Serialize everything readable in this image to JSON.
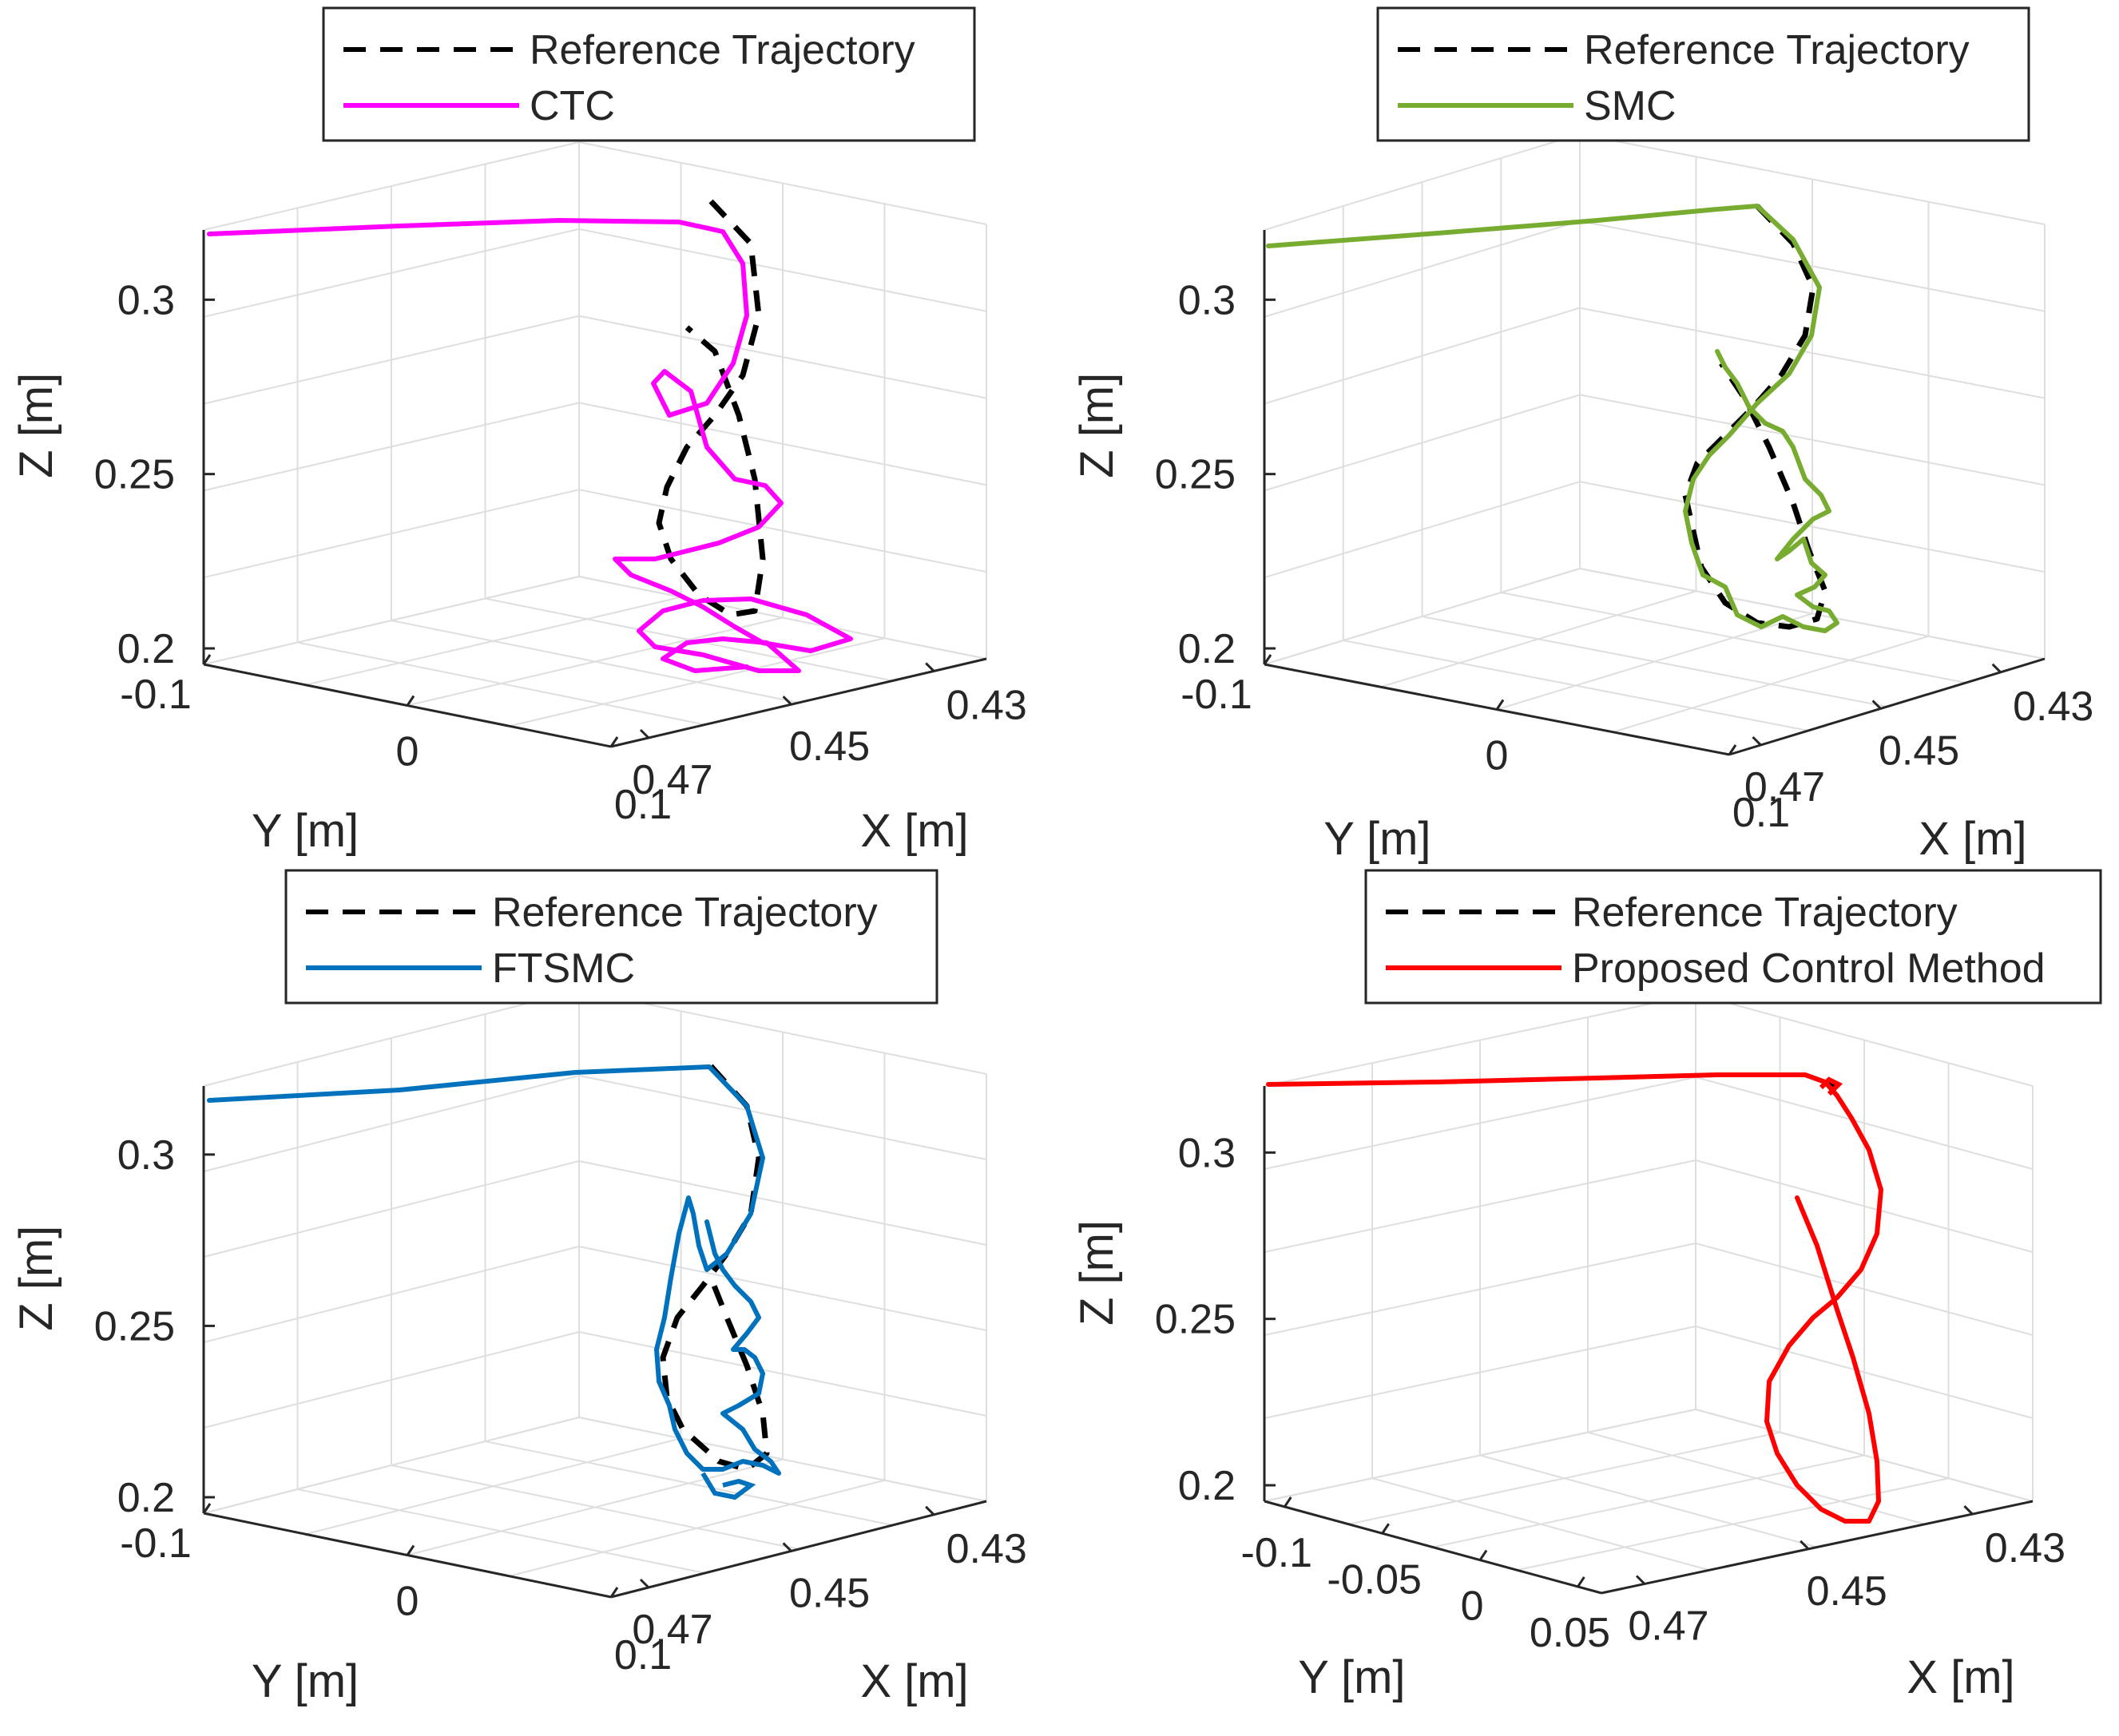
{
  "figure": "3D trajectory tracking comparison (2x2 subplots)",
  "axis_labels": {
    "x": "X [m]",
    "y": "Y [m]",
    "z": "Z [m]"
  },
  "colors": {
    "reference": "#000000",
    "ctc": "#ff00ff",
    "smc": "#77ac30",
    "ftsmc": "#0072bd",
    "proposed": "#ff0000",
    "grid": "#dedede",
    "axis": "#262626"
  },
  "chart_data": [
    {
      "type": "line",
      "panel": "top-left",
      "legend": [
        "Reference Trajectory",
        "CTC"
      ],
      "xlabel": "X [m]",
      "ylabel": "Y [m]",
      "zlabel": "Z [m]",
      "x_ticks": [
        "0.47",
        "0.45",
        "0.43"
      ],
      "y_ticks": [
        "-0.1",
        "0",
        "0.1"
      ],
      "z_ticks": [
        "0.2",
        "0.25",
        "0.3"
      ],
      "zlim": [
        0.2,
        0.32
      ],
      "series": [
        {
          "name": "Reference Trajectory",
          "style": "dashed",
          "color": "#000000"
        },
        {
          "name": "CTC",
          "style": "solid",
          "color": "#ff00ff"
        }
      ]
    },
    {
      "type": "line",
      "panel": "top-right",
      "legend": [
        "Reference Trajectory",
        "SMC"
      ],
      "xlabel": "X [m]",
      "ylabel": "Y [m]",
      "zlabel": "Z [m]",
      "x_ticks": [
        "0.47",
        "0.45",
        "0.43"
      ],
      "y_ticks": [
        "-0.1",
        "0",
        "0.1"
      ],
      "z_ticks": [
        "0.2",
        "0.25",
        "0.3"
      ],
      "zlim": [
        0.2,
        0.32
      ],
      "series": [
        {
          "name": "Reference Trajectory",
          "style": "dashed",
          "color": "#000000"
        },
        {
          "name": "SMC",
          "style": "solid",
          "color": "#77ac30"
        }
      ]
    },
    {
      "type": "line",
      "panel": "bottom-left",
      "legend": [
        "Reference Trajectory",
        "FTSMC"
      ],
      "xlabel": "X [m]",
      "ylabel": "Y [m]",
      "zlabel": "Z [m]",
      "x_ticks": [
        "0.47",
        "0.45",
        "0.43"
      ],
      "y_ticks": [
        "-0.1",
        "0",
        "0.1"
      ],
      "z_ticks": [
        "0.2",
        "0.25",
        "0.3"
      ],
      "zlim": [
        0.2,
        0.32
      ],
      "series": [
        {
          "name": "Reference Trajectory",
          "style": "dashed",
          "color": "#000000"
        },
        {
          "name": "FTSMC",
          "style": "solid",
          "color": "#0072bd"
        }
      ]
    },
    {
      "type": "line",
      "panel": "bottom-right",
      "legend": [
        "Reference Trajectory",
        "Proposed Control Method"
      ],
      "xlabel": "X [m]",
      "ylabel": "Y [m]",
      "zlabel": "Z [m]",
      "x_ticks": [
        "0.47",
        "0.45",
        "0.43"
      ],
      "y_ticks": [
        "-0.1",
        "-0.05",
        "0",
        "0.05"
      ],
      "z_ticks": [
        "0.2",
        "0.25",
        "0.3"
      ],
      "zlim": [
        0.2,
        0.32
      ],
      "series": [
        {
          "name": "Reference Trajectory",
          "style": "dashed",
          "color": "#000000"
        },
        {
          "name": "Proposed Control Method",
          "style": "solid",
          "color": "#ff0000"
        }
      ]
    }
  ]
}
